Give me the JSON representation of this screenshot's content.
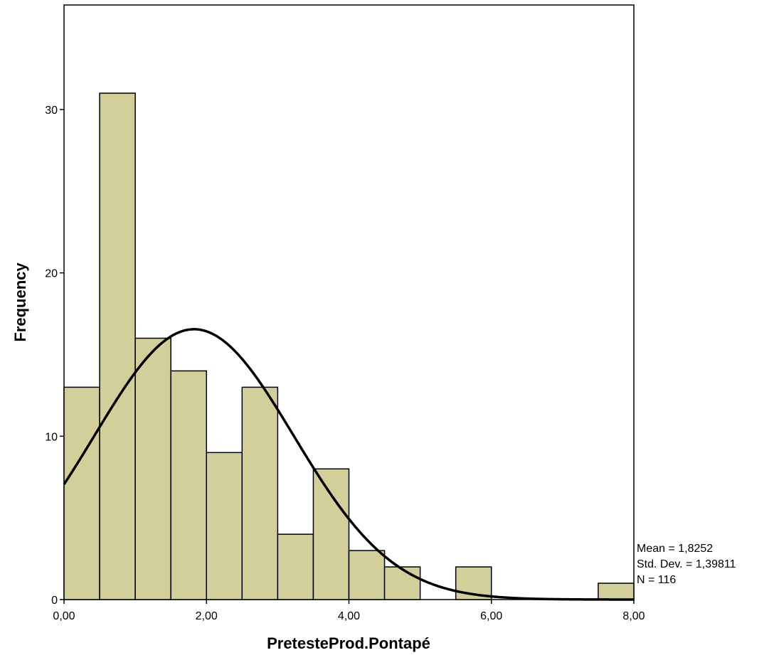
{
  "chart_data": {
    "type": "bar",
    "subtype": "histogram",
    "xlabel": "PretesteProd.Pontapé",
    "ylabel": "Frequency",
    "xlim": [
      0,
      8
    ],
    "ylim": [
      0,
      36.4
    ],
    "bin_width": 0.5,
    "bins": [
      {
        "x0": 0.0,
        "x1": 0.5,
        "value": 13
      },
      {
        "x0": 0.5,
        "x1": 1.0,
        "value": 31
      },
      {
        "x0": 1.0,
        "x1": 1.5,
        "value": 16
      },
      {
        "x0": 1.5,
        "x1": 2.0,
        "value": 14
      },
      {
        "x0": 2.0,
        "x1": 2.5,
        "value": 9
      },
      {
        "x0": 2.5,
        "x1": 3.0,
        "value": 13
      },
      {
        "x0": 3.0,
        "x1": 3.5,
        "value": 4
      },
      {
        "x0": 3.5,
        "x1": 4.0,
        "value": 8
      },
      {
        "x0": 4.0,
        "x1": 4.5,
        "value": 3
      },
      {
        "x0": 4.5,
        "x1": 5.0,
        "value": 2
      },
      {
        "x0": 5.0,
        "x1": 5.5,
        "value": 0
      },
      {
        "x0": 5.5,
        "x1": 6.0,
        "value": 2
      },
      {
        "x0": 6.0,
        "x1": 6.5,
        "value": 0
      },
      {
        "x0": 6.5,
        "x1": 7.0,
        "value": 0
      },
      {
        "x0": 7.0,
        "x1": 7.5,
        "value": 0
      },
      {
        "x0": 7.5,
        "x1": 8.0,
        "value": 1
      }
    ],
    "x_ticks": [
      {
        "value": 0,
        "label": "0,00"
      },
      {
        "value": 2,
        "label": "2,00"
      },
      {
        "value": 4,
        "label": "4,00"
      },
      {
        "value": 6,
        "label": "6,00"
      },
      {
        "value": 8,
        "label": "8,00"
      }
    ],
    "y_ticks": [
      {
        "value": 0,
        "label": "0"
      },
      {
        "value": 10,
        "label": "10"
      },
      {
        "value": 20,
        "label": "20"
      },
      {
        "value": 30,
        "label": "30"
      }
    ],
    "normal_curve": {
      "mean": 1.8252,
      "std": 1.39811,
      "n": 116
    },
    "stats_labels": [
      "Mean = 1,8252",
      "Std. Dev. = 1,39811",
      "N = 116"
    ],
    "colors": {
      "bar_fill": "#d3cf9b",
      "bar_stroke": "#000000",
      "curve": "#000000"
    },
    "grid": false,
    "legend": "none"
  }
}
